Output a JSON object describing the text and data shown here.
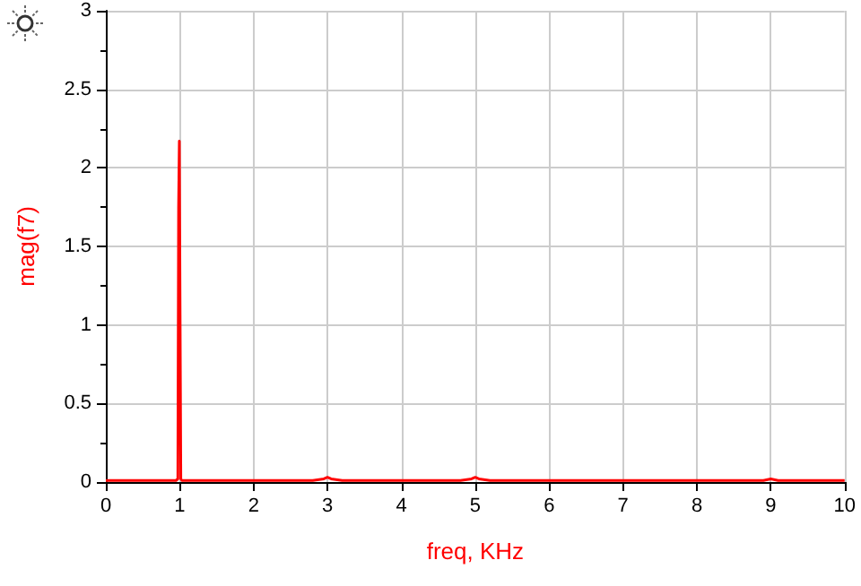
{
  "chart_data": {
    "type": "line",
    "xlabel": "freq, KHz",
    "ylabel": "mag(f7)",
    "series": [
      {
        "color": "#ff0000",
        "x": [
          0,
          0.25,
          0.5,
          0.75,
          0.95,
          0.975,
          0.985,
          0.995,
          1.005,
          1.015,
          1.03,
          1.25,
          1.5,
          2,
          2.5,
          2.8,
          2.95,
          3,
          3.05,
          3.2,
          3.5,
          4,
          4.5,
          4.8,
          4.95,
          5,
          5.05,
          5.2,
          5.5,
          6,
          7,
          8,
          8.9,
          9,
          9.1,
          10
        ],
        "values": [
          0.01,
          0.01,
          0.01,
          0.01,
          0.01,
          0.02,
          1.75,
          2.17,
          1.07,
          0.02,
          0.01,
          0.01,
          0.01,
          0.01,
          0.01,
          0.01,
          0.02,
          0.03,
          0.02,
          0.01,
          0.01,
          0.01,
          0.01,
          0.01,
          0.02,
          0.03,
          0.02,
          0.01,
          0.01,
          0.01,
          0.01,
          0.01,
          0.01,
          0.02,
          0.01,
          0.01
        ]
      }
    ],
    "xlim": [
      0,
      10
    ],
    "xticks": [
      0,
      1,
      2,
      3,
      4,
      5,
      6,
      7,
      8,
      9,
      10
    ],
    "ylim": [
      0,
      3
    ],
    "yticks": [
      0,
      0.5,
      1,
      1.5,
      2,
      2.5,
      3
    ],
    "grid": true,
    "marker": "none",
    "line_style": "solid"
  }
}
